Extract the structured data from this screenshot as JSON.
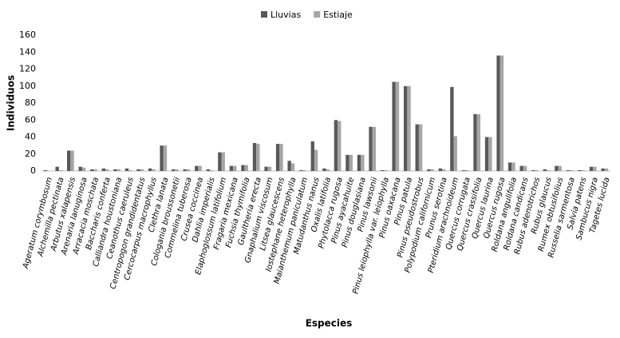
{
  "chart_data": {
    "type": "bar",
    "x_label": "Especies",
    "y_label": "Individuos",
    "categories": [
      "Ageratum corymbosum",
      "Alchemilla pectinata",
      "Arbutus xalapensis",
      "Arenaria lanuginosa",
      "Arracacia moschata",
      "Baccharis conferta",
      "Calliandra houstoniana",
      "Ceanothus caeruleus",
      "Centropogon grandidentatus",
      "Cercocarpus macrophyllus",
      "Clethra lanata",
      "Cologania broussonetii",
      "Commelina tuberosa",
      "Crusea coccinea",
      "Dahlia imperialis",
      "Elaphoglossum latifolium",
      "Fragaria mexicana",
      "Fuchsia thymifolia",
      "Gaultheria erecta",
      "Gnaphalium viscosum",
      "Litsea glaucescens",
      "Iostephane heterophylla",
      "Maianthemum paniculatum",
      "Matudanthus nanus",
      "Oxalis latifolia",
      "Phytolacca rugosa",
      "Pinus ayacahuite",
      "Pinus douglasiana",
      "Pinus lawsonii",
      "Pinus leiophylla var. leiophylla",
      "Pinus oaxacana",
      "Pinus patula",
      "Pinus pseudostrobus",
      "Polypodium californicum",
      "Prunus serotina",
      "Pteridium arachnoideum",
      "Quercus corrugata",
      "Quercus crassifolia",
      "Quercus laurina",
      "Quercus rugosa",
      "Roldana angulifolia",
      "Roldana candicans",
      "Rubus adenotrichos",
      "Rubus glaucus",
      "Rumex obtusifolius",
      "Russelia sarmentosa",
      "Salvia patens",
      "Sambucus nigra",
      "Tagetes lucida"
    ],
    "series": [
      {
        "name": "Lluvias",
        "color": "#595959",
        "values": [
          1,
          5,
          24,
          5,
          2,
          3,
          2,
          3,
          2,
          3,
          30,
          2,
          2,
          6,
          2,
          22,
          6,
          7,
          33,
          5,
          32,
          12,
          1,
          35,
          3,
          60,
          19,
          19,
          52,
          1,
          105,
          100,
          55,
          2,
          3,
          99,
          1,
          67,
          40,
          136,
          10,
          6,
          1,
          2,
          6,
          1,
          1,
          5,
          3
        ]
      },
      {
        "name": "Estiaje",
        "color": "#a6a6a6",
        "values": [
          0,
          1,
          24,
          4,
          2,
          2,
          2,
          1,
          2,
          2,
          30,
          2,
          2,
          6,
          1,
          22,
          6,
          7,
          32,
          5,
          32,
          9,
          1,
          25,
          2,
          59,
          19,
          19,
          52,
          1,
          105,
          100,
          55,
          2,
          2,
          41,
          1,
          67,
          40,
          136,
          10,
          6,
          1,
          1,
          6,
          1,
          1,
          5,
          3
        ]
      }
    ],
    "ylim": [
      0,
      160
    ],
    "yticks": [
      0,
      20,
      40,
      60,
      80,
      100,
      120,
      140,
      160
    ],
    "grid": false,
    "legend": "top"
  }
}
